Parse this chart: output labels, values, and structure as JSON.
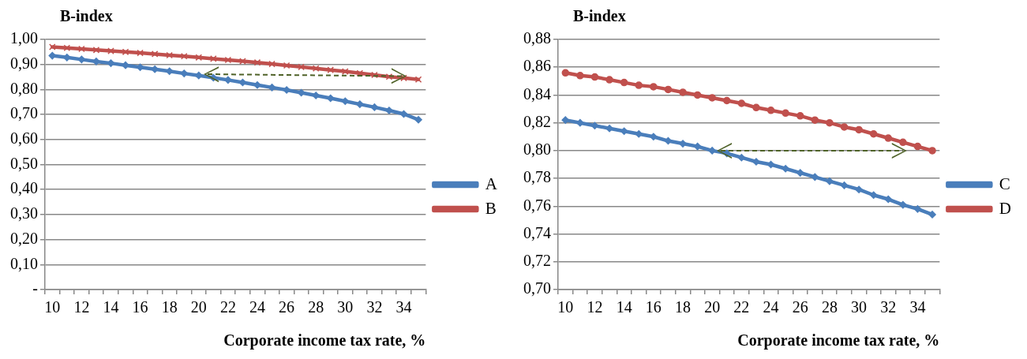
{
  "chart_data": [
    {
      "type": "line",
      "ylabel": "B-index",
      "xlabel": "Corporate income tax rate, %",
      "categories": [
        "10",
        null,
        "12",
        null,
        "14",
        null,
        "16",
        null,
        "18",
        null,
        "20",
        null,
        "22",
        null,
        "24",
        null,
        "26",
        null,
        "28",
        null,
        "30",
        null,
        "32",
        null,
        "34",
        null
      ],
      "series": [
        {
          "name": "A",
          "color": "#4a7ebb",
          "marker": "diamond",
          "values": [
            0.935,
            0.928,
            0.92,
            0.912,
            0.905,
            0.897,
            0.889,
            0.881,
            0.873,
            0.864,
            0.856,
            0.847,
            0.838,
            0.828,
            0.818,
            0.808,
            0.798,
            0.787,
            0.776,
            0.765,
            0.753,
            0.741,
            0.729,
            0.716,
            0.702,
            0.679
          ]
        },
        {
          "name": "B",
          "color": "#c0504d",
          "marker": "cross",
          "values": [
            0.97,
            0.966,
            0.962,
            0.958,
            0.954,
            0.95,
            0.946,
            0.942,
            0.937,
            0.933,
            0.928,
            0.923,
            0.918,
            0.913,
            0.908,
            0.902,
            0.896,
            0.89,
            0.884,
            0.878,
            0.872,
            0.865,
            0.858,
            0.851,
            0.846,
            0.84
          ]
        }
      ],
      "ylim": [
        0,
        1
      ],
      "yticks": [
        {
          "value": 0,
          "label": "-"
        },
        {
          "value": 0.1,
          "label": "0,10"
        },
        {
          "value": 0.2,
          "label": "0,20"
        },
        {
          "value": 0.3,
          "label": "0,30"
        },
        {
          "value": 0.4,
          "label": "0,40"
        },
        {
          "value": 0.5,
          "label": "0,50"
        },
        {
          "value": 0.6,
          "label": "0,60"
        },
        {
          "value": 0.7,
          "label": "0,70"
        },
        {
          "value": 0.8,
          "label": "0,80"
        },
        {
          "value": 0.9,
          "label": "0,90"
        },
        {
          "value": 1,
          "label": "1,00"
        }
      ],
      "grid": "y",
      "legend": "right",
      "line_style": "solid"
    },
    {
      "type": "line",
      "ylabel": "B-index",
      "xlabel": "Corporate income tax rate, %",
      "categories": [
        "10",
        null,
        "12",
        null,
        "14",
        null,
        "16",
        null,
        "18",
        null,
        "20",
        null,
        "22",
        null,
        "24",
        null,
        "26",
        null,
        "28",
        null,
        "30",
        null,
        "32",
        null,
        "34",
        null
      ],
      "series": [
        {
          "name": "C",
          "color": "#4a7ebb",
          "marker": "diamond",
          "values": [
            0.822,
            0.82,
            0.818,
            0.816,
            0.814,
            0.812,
            0.81,
            0.807,
            0.805,
            0.803,
            0.8,
            0.798,
            0.795,
            0.792,
            0.79,
            0.787,
            0.784,
            0.781,
            0.778,
            0.775,
            0.772,
            0.768,
            0.765,
            0.761,
            0.758,
            0.754
          ]
        },
        {
          "name": "D",
          "color": "#c0504d",
          "marker": "circle",
          "values": [
            0.856,
            0.854,
            0.853,
            0.851,
            0.849,
            0.847,
            0.846,
            0.844,
            0.842,
            0.84,
            0.838,
            0.836,
            0.834,
            0.831,
            0.829,
            0.827,
            0.825,
            0.822,
            0.82,
            0.817,
            0.815,
            0.812,
            0.809,
            0.806,
            0.803,
            0.8
          ]
        }
      ],
      "ylim": [
        0.7,
        0.88
      ],
      "yticks": [
        {
          "value": 0.7,
          "label": "0,70"
        },
        {
          "value": 0.72,
          "label": "0,72"
        },
        {
          "value": 0.74,
          "label": "0,74"
        },
        {
          "value": 0.76,
          "label": "0,76"
        },
        {
          "value": 0.78,
          "label": "0,78"
        },
        {
          "value": 0.8,
          "label": "0,80"
        },
        {
          "value": 0.82,
          "label": "0,82"
        },
        {
          "value": 0.84,
          "label": "0,84"
        },
        {
          "value": 0.86,
          "label": "0,86"
        },
        {
          "value": 0.88,
          "label": "0,88"
        }
      ],
      "grid": "y",
      "legend": "right",
      "line_style": "solid"
    }
  ]
}
